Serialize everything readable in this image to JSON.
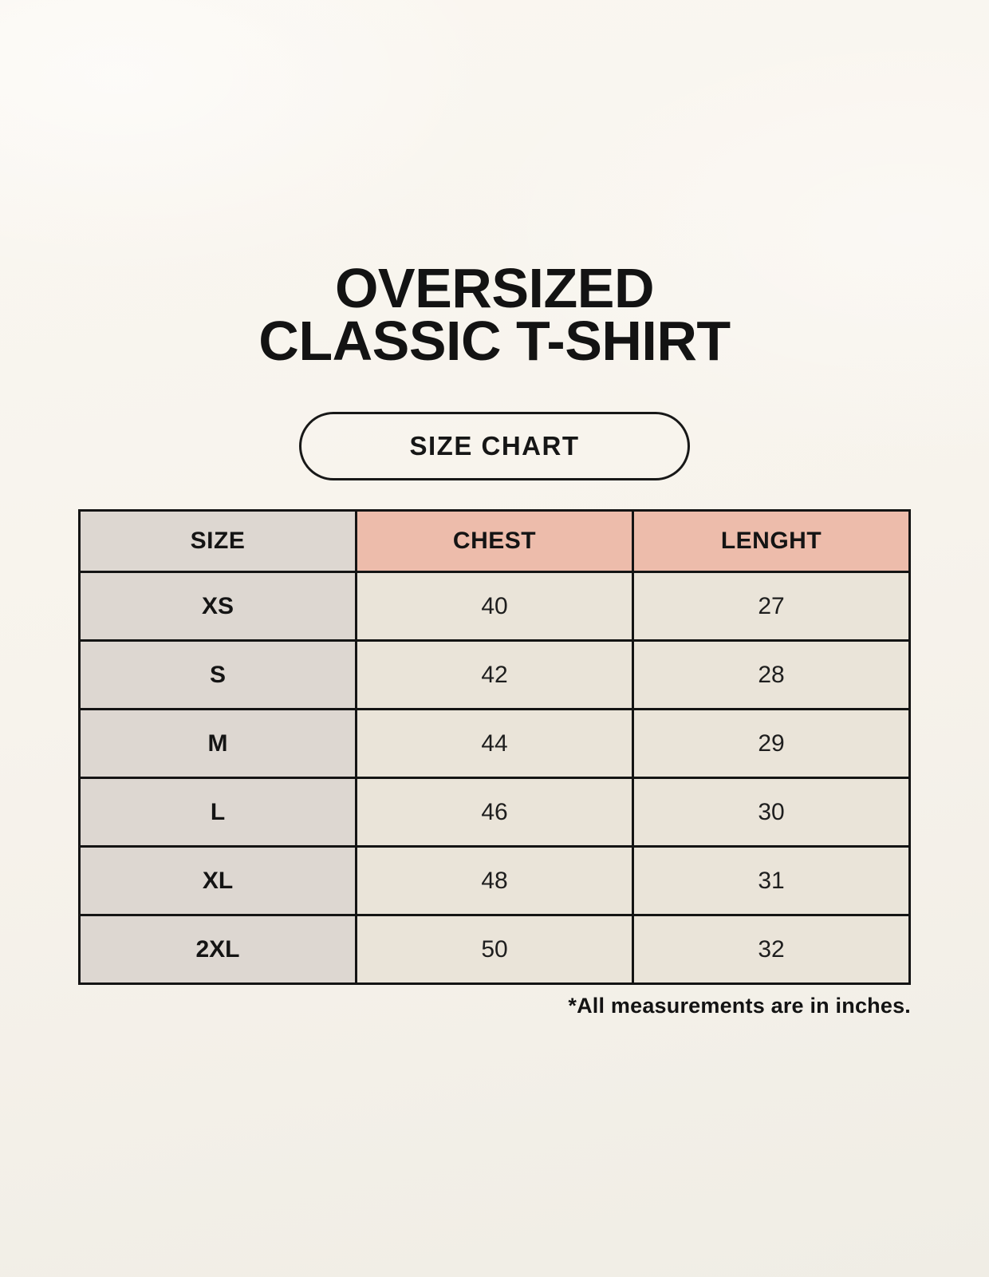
{
  "page": {
    "title_line1": "OVERSIZED",
    "title_line2": "CLASSIC T-SHIRT",
    "badge_label": "SIZE CHART"
  },
  "colors": {
    "background_cream": "#f7f3ec",
    "header_gray": "#ddd7d1",
    "header_pink": "#edbcab",
    "cell_cream": "#eae4d9",
    "border_black": "#141414",
    "text_black": "#131313"
  },
  "size_chart": {
    "columns": [
      "SIZE",
      "CHEST",
      "LENGHT"
    ],
    "rows": [
      {
        "size": "XS",
        "chest": "40",
        "length": "27"
      },
      {
        "size": "S",
        "chest": "42",
        "length": "28"
      },
      {
        "size": "M",
        "chest": "44",
        "length": "29"
      },
      {
        "size": "L",
        "chest": "46",
        "length": "30"
      },
      {
        "size": "XL",
        "chest": "48",
        "length": "31"
      },
      {
        "size": "2XL",
        "chest": "50",
        "length": "32"
      }
    ],
    "footnote": "*All measurements are in inches."
  }
}
